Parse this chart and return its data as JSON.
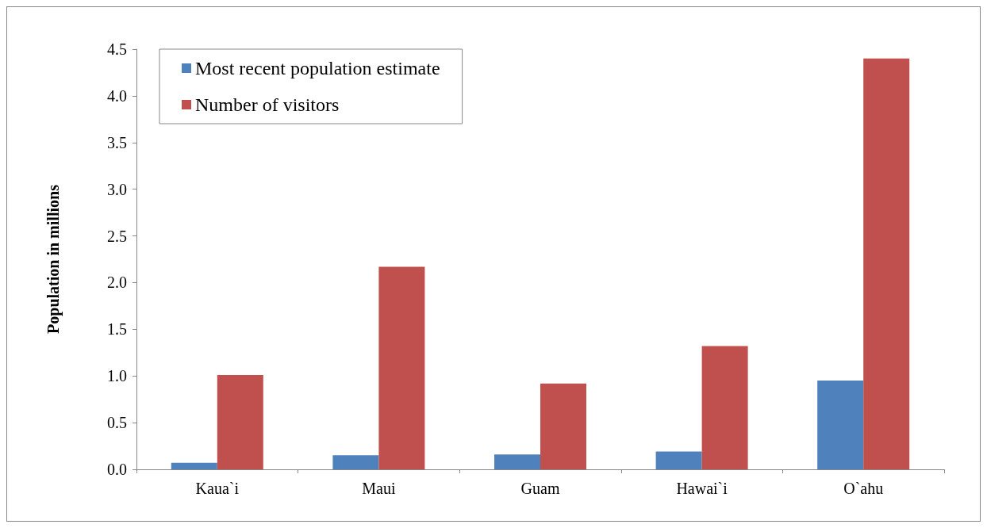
{
  "chart_data": {
    "type": "bar",
    "ylabel": "Population in millions",
    "categories": [
      "Kaua`i",
      "Maui",
      "Guam",
      "Hawai`i",
      "O`ahu"
    ],
    "series": [
      {
        "name": "Most recent population estimate",
        "color": "#4f81bd",
        "values": [
          0.07,
          0.15,
          0.16,
          0.19,
          0.95
        ]
      },
      {
        "name": "Number of visitors",
        "color": "#c0504d",
        "values": [
          1.01,
          2.17,
          0.92,
          1.32,
          4.4
        ]
      }
    ],
    "ylim": [
      0,
      4.5
    ],
    "yticks": [
      {
        "value": 0,
        "label": "0.0"
      },
      0.5,
      {
        "value": 1,
        "label": "1.0"
      },
      1.5,
      {
        "value": 2,
        "label": "2.0"
      },
      2.5,
      {
        "value": 3,
        "label": "3.0"
      },
      3.5,
      {
        "value": 4,
        "label": "4.0"
      },
      4.5
    ],
    "grid": false,
    "legend": "top left"
  }
}
